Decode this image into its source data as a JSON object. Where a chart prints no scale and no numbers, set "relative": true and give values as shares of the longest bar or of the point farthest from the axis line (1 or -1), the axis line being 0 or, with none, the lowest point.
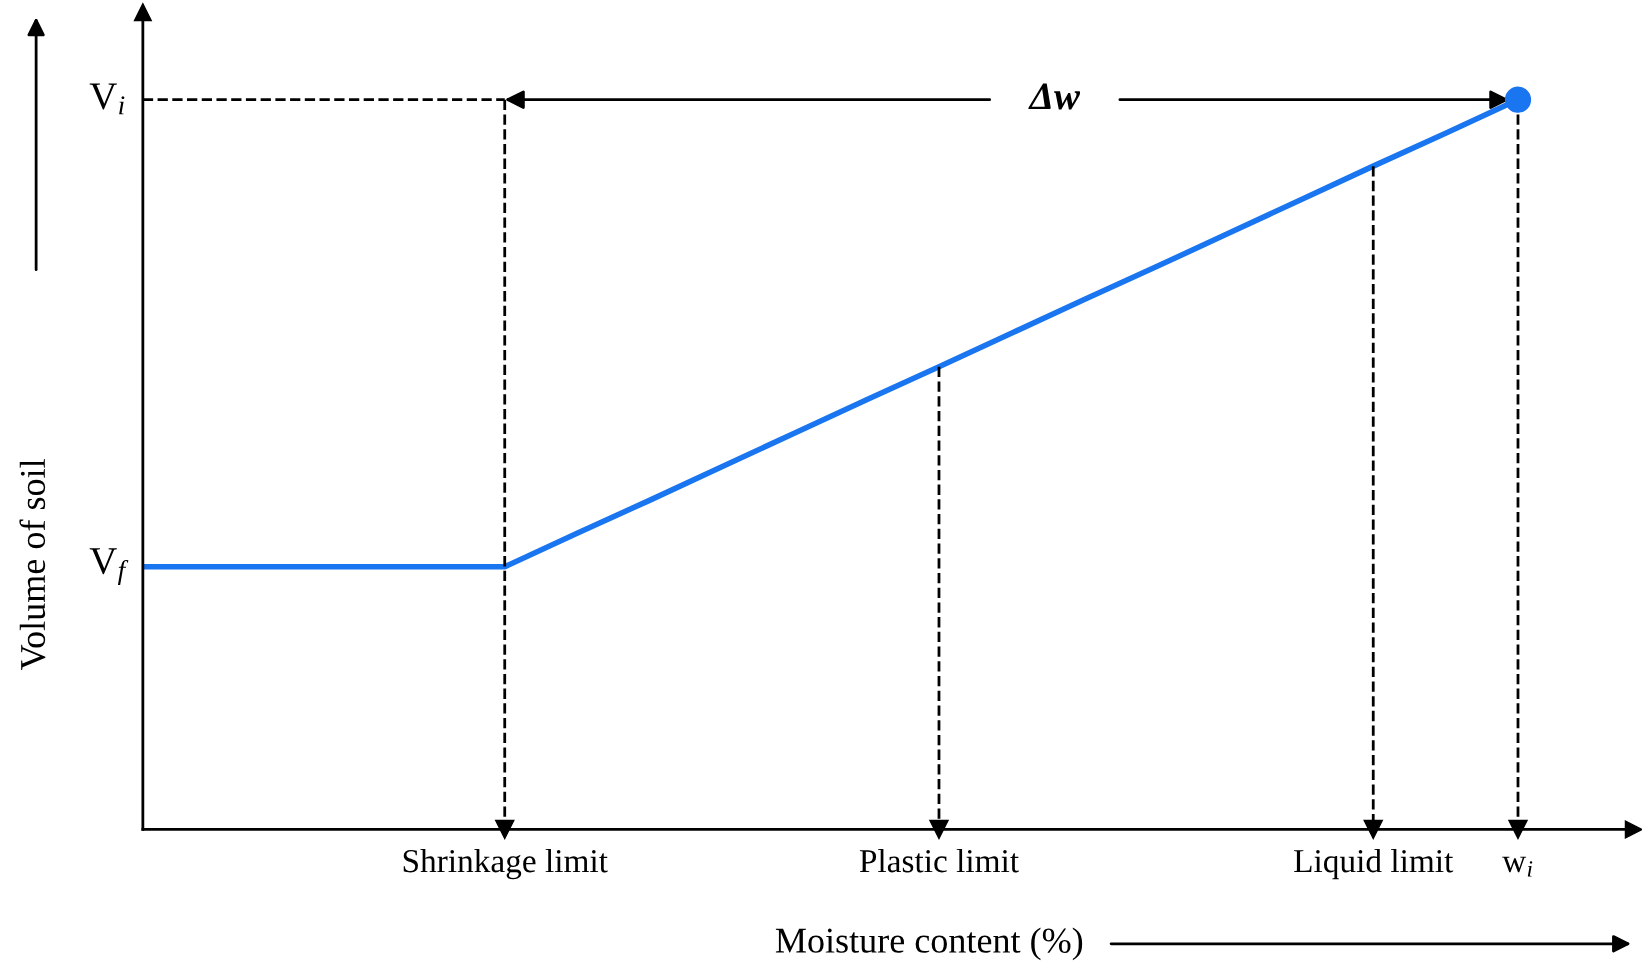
{
  "chart_data": {
    "type": "line",
    "relative": true,
    "xlabel": "Moisture content (%)",
    "ylabel": "Volume of soil",
    "categories": [
      null,
      null,
      null,
      null,
      null,
      "Shrinkage limit",
      null,
      null,
      null,
      null,
      null,
      "Plastic limit",
      null,
      null,
      null,
      null,
      null,
      "Liquid limit",
      null,
      "w$_{i}$",
      null
    ],
    "series": [
      {
        "color": "#1a75f0",
        "values": [
          0.36,
          0.36,
          0.36,
          0.36,
          0.36,
          0.36,
          0.406,
          0.451,
          0.497,
          0.543,
          0.589,
          0.634,
          0.68,
          0.726,
          0.771,
          0.817,
          0.863,
          0.909,
          0.954,
          1,
          null
        ]
      },
      {
        "type": "scatter",
        "color": "#1a75f0",
        "marker": "circle",
        "values": [
          null,
          null,
          null,
          null,
          null,
          null,
          null,
          null,
          null,
          null,
          null,
          null,
          null,
          null,
          null,
          null,
          null,
          null,
          null,
          1,
          null
        ]
      }
    ],
    "ref_lines": [
      {
        "axis": "y",
        "value": 1,
        "label": "V$_{i}$",
        "line_style": "dashed",
        "color": "#000000"
      },
      {
        "axis": "x",
        "value": "Shrinkage limit",
        "line_style": "dashed",
        "color": "#000000"
      },
      {
        "axis": "x",
        "value": "Plastic limit",
        "line_style": "dashed",
        "color": "#000000"
      },
      {
        "axis": "x",
        "value": "Liquid limit",
        "line_style": "dashed",
        "color": "#000000"
      },
      {
        "axis": "x",
        "value": "w$_{i}$",
        "line_style": "dashed",
        "color": "#000000"
      }
    ],
    "annotations": [
      "V$_{f}$",
      "Δw"
    ],
    "grid": false,
    "legend": false,
    "line_style": "solid"
  }
}
